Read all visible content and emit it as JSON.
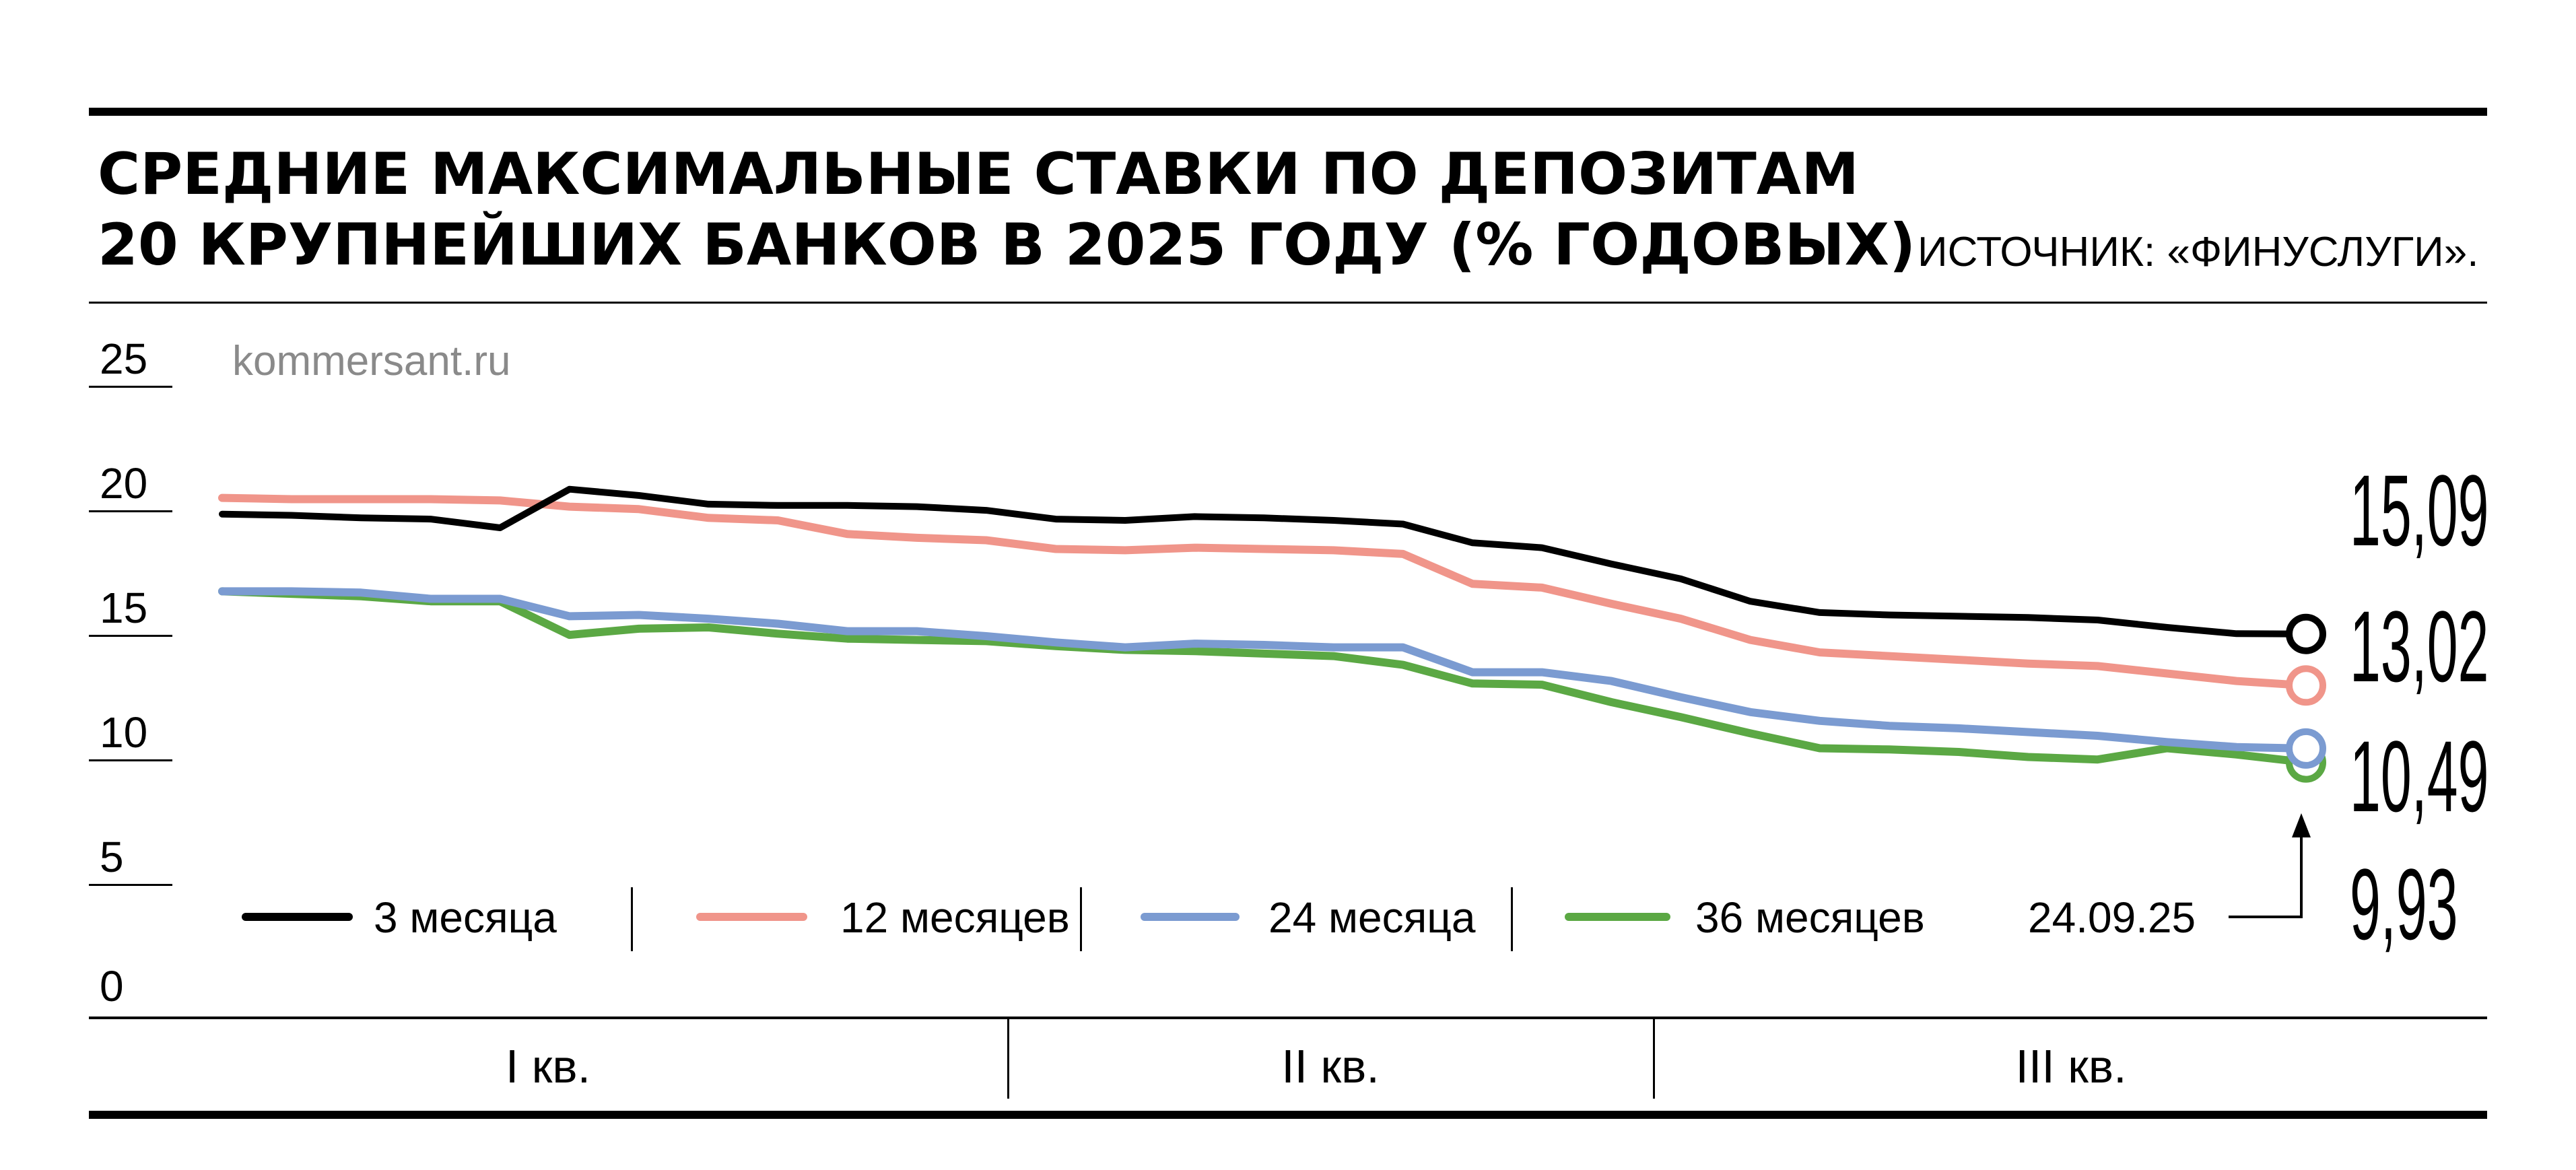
{
  "title_line1": "СРЕДНИЕ МАКСИМАЛЬНЫЕ СТАВКИ ПО ДЕПОЗИТАМ",
  "title_line2": "20 КРУПНЕЙШИХ БАНКОВ В 2025 ГОДУ (% ГОДОВЫХ)",
  "source": "ИСТОЧНИК: «ФИНУСЛУГИ».",
  "watermark": "kommersant.ru",
  "date_label": "24.09.25",
  "quarters": [
    "I кв.",
    "II кв.",
    "III кв."
  ],
  "end_values": [
    "15,09",
    "13,02",
    "10,49",
    "9,93"
  ],
  "chart_data": {
    "type": "line",
    "y_ticks": [
      "25",
      "20",
      "15",
      "10",
      "5",
      "0"
    ],
    "ylim": [
      0,
      25
    ],
    "x_index_range": [
      0,
      30
    ],
    "grid": false,
    "legend_placement": "bottom",
    "series": [
      {
        "name": "3 месяца",
        "color": "#000000",
        "values": [
          19.9,
          19.85,
          19.75,
          19.7,
          19.35,
          20.9,
          20.65,
          20.3,
          20.25,
          20.25,
          20.2,
          20.05,
          19.7,
          19.65,
          19.8,
          19.75,
          19.65,
          19.5,
          18.75,
          18.55,
          17.9,
          17.3,
          16.4,
          15.95,
          15.85,
          15.8,
          15.75,
          15.65,
          15.35,
          15.1,
          15.09
        ]
      },
      {
        "name": "12 месяцев",
        "color": "#f0958a",
        "values": [
          20.55,
          20.5,
          20.5,
          20.5,
          20.45,
          20.2,
          20.1,
          19.75,
          19.65,
          19.1,
          18.95,
          18.85,
          18.5,
          18.45,
          18.55,
          18.5,
          18.45,
          18.3,
          17.1,
          16.95,
          16.3,
          15.7,
          14.85,
          14.35,
          14.2,
          14.05,
          13.9,
          13.8,
          13.5,
          13.2,
          13.02
        ]
      },
      {
        "name": "24 месяца",
        "color": "#7b9bd1",
        "values": [
          16.8,
          16.8,
          16.75,
          16.5,
          16.5,
          15.8,
          15.85,
          15.7,
          15.5,
          15.2,
          15.2,
          15.0,
          14.75,
          14.55,
          14.7,
          14.65,
          14.55,
          14.55,
          13.55,
          13.55,
          13.2,
          12.55,
          11.95,
          11.6,
          11.4,
          11.3,
          11.15,
          11.0,
          10.75,
          10.55,
          10.49
        ]
      },
      {
        "name": "36 месяцев",
        "color": "#5ba844",
        "values": [
          16.8,
          16.7,
          16.6,
          16.4,
          16.4,
          15.05,
          15.3,
          15.35,
          15.1,
          14.9,
          14.85,
          14.8,
          14.6,
          14.45,
          14.4,
          14.3,
          14.2,
          13.85,
          13.1,
          13.05,
          12.35,
          11.75,
          11.1,
          10.5,
          10.45,
          10.35,
          10.15,
          10.05,
          10.5,
          10.25,
          9.93
        ]
      }
    ]
  }
}
